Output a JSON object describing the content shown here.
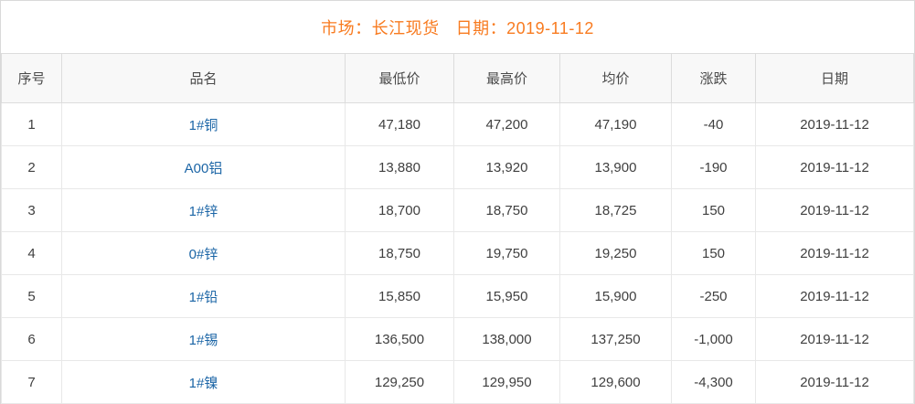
{
  "title": {
    "market_label": "市场：长江现货",
    "date_label": "日期：2019-11-12"
  },
  "colors": {
    "title_orange": "#f87b20",
    "product_link_blue": "#1b65a6",
    "change_up_red": "#ef142f",
    "change_down_green": "#0b8e0b",
    "header_bg": "#f8f8f8",
    "border_gray": "#dcdcdc"
  },
  "table": {
    "columns": [
      {
        "key": "index",
        "label": "序号"
      },
      {
        "key": "name",
        "label": "品名"
      },
      {
        "key": "low",
        "label": "最低价"
      },
      {
        "key": "high",
        "label": "最高价"
      },
      {
        "key": "avg",
        "label": "均价"
      },
      {
        "key": "change",
        "label": "涨跌"
      },
      {
        "key": "date",
        "label": "日期"
      }
    ],
    "rows": [
      {
        "index": "1",
        "name": "1#铜",
        "low": "47,180",
        "high": "47,200",
        "avg": "47,190",
        "change": "-40",
        "change_dir": "down",
        "date": "2019-11-12"
      },
      {
        "index": "2",
        "name": "A00铝",
        "low": "13,880",
        "high": "13,920",
        "avg": "13,900",
        "change": "-190",
        "change_dir": "down",
        "date": "2019-11-12"
      },
      {
        "index": "3",
        "name": "1#锌",
        "low": "18,700",
        "high": "18,750",
        "avg": "18,725",
        "change": "150",
        "change_dir": "up",
        "date": "2019-11-12"
      },
      {
        "index": "4",
        "name": "0#锌",
        "low": "18,750",
        "high": "19,750",
        "avg": "19,250",
        "change": "150",
        "change_dir": "up",
        "date": "2019-11-12"
      },
      {
        "index": "5",
        "name": "1#铅",
        "low": "15,850",
        "high": "15,950",
        "avg": "15,900",
        "change": "-250",
        "change_dir": "down",
        "date": "2019-11-12"
      },
      {
        "index": "6",
        "name": "1#锡",
        "low": "136,500",
        "high": "138,000",
        "avg": "137,250",
        "change": "-1,000",
        "change_dir": "down",
        "date": "2019-11-12"
      },
      {
        "index": "7",
        "name": "1#镍",
        "low": "129,250",
        "high": "129,950",
        "avg": "129,600",
        "change": "-4,300",
        "change_dir": "down",
        "date": "2019-11-12"
      }
    ]
  }
}
